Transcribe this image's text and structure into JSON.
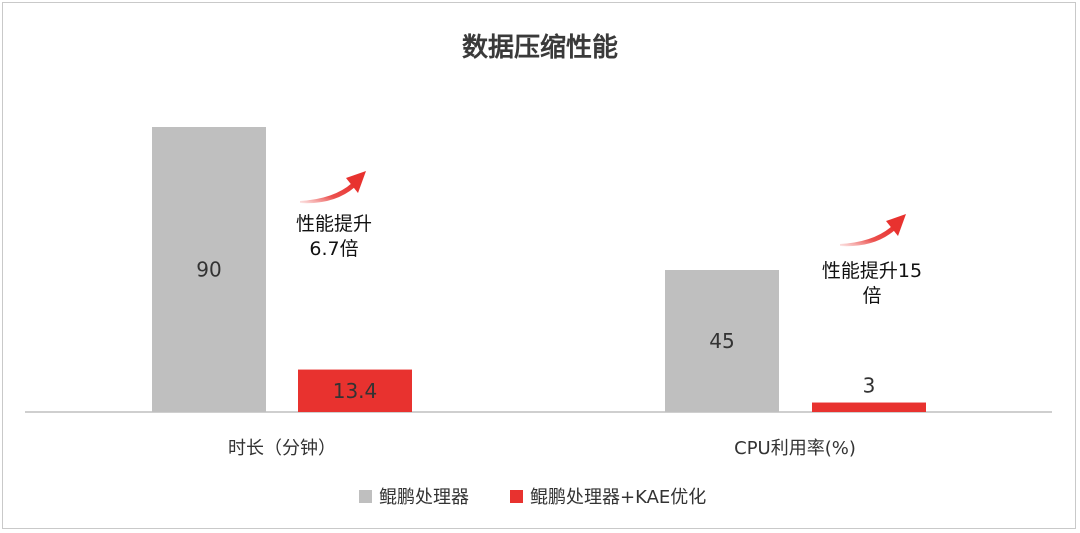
{
  "chart_data": {
    "type": "bar",
    "title": "数据压缩性能",
    "categories": [
      "时长（分钟）",
      "CPU利用率(%)"
    ],
    "series": [
      {
        "name": "鲲鹏处理器",
        "color": "#bfbfbf",
        "values": [
          90,
          45
        ]
      },
      {
        "name": "鲲鹏处理器+KAE优化",
        "color": "#e8322f",
        "values": [
          13.4,
          3
        ]
      }
    ],
    "data_labels": [
      [
        "90",
        "13.4"
      ],
      [
        "45",
        "3"
      ]
    ],
    "group_ylim": [
      [
        0,
        90
      ],
      [
        0,
        45
      ]
    ],
    "annotations": [
      {
        "category": "时长（分钟）",
        "lines": [
          "性能提升",
          "6.7倍"
        ]
      },
      {
        "category": "CPU利用率(%)",
        "lines": [
          "性能提升15",
          "倍"
        ]
      }
    ],
    "legend": "bottom",
    "grid": false,
    "arrow_icon": "red-curved-arrow-icon"
  }
}
